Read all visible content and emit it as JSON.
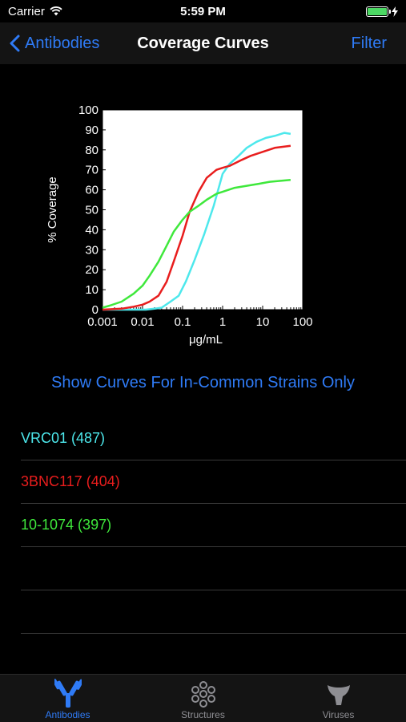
{
  "status": {
    "carrier": "Carrier",
    "time": "5:59 PM"
  },
  "nav": {
    "back_label": "Antibodies",
    "title": "Coverage Curves",
    "filter_label": "Filter"
  },
  "chart_data": {
    "type": "line",
    "xlabel": "μg/mL",
    "ylabel": "% Coverage",
    "xscale": "log",
    "xlim": [
      0.001,
      100
    ],
    "ylim": [
      0,
      100
    ],
    "x_ticks": [
      "0.001",
      "0.01",
      "0.1",
      "1",
      "10",
      "100"
    ],
    "y_ticks": [
      "0",
      "10",
      "20",
      "30",
      "40",
      "50",
      "60",
      "70",
      "80",
      "90",
      "100"
    ],
    "series": [
      {
        "name": "VRC01",
        "color": "#4de8ec",
        "x": [
          0.001,
          0.012,
          0.02,
          0.03,
          0.05,
          0.08,
          0.12,
          0.2,
          0.35,
          0.6,
          1,
          1.5,
          2.5,
          4,
          7,
          12,
          20,
          35,
          50
        ],
        "y": [
          0,
          0,
          0.5,
          1,
          4,
          7,
          14,
          25,
          38,
          52,
          68,
          73,
          77,
          81,
          84,
          86,
          87,
          88.5,
          88
        ]
      },
      {
        "name": "3BNC117",
        "color": "#e81d1d",
        "x": [
          0.001,
          0.003,
          0.006,
          0.01,
          0.015,
          0.025,
          0.04,
          0.06,
          0.1,
          0.15,
          0.25,
          0.4,
          0.7,
          1,
          1.5,
          3,
          5,
          10,
          20,
          50
        ],
        "y": [
          0,
          0.5,
          1.5,
          2.5,
          4,
          7,
          14,
          24,
          37,
          49,
          59,
          66,
          70,
          71,
          72,
          75,
          77,
          79,
          81,
          82
        ]
      },
      {
        "name": "10-1074",
        "color": "#3fe83c",
        "x": [
          0.001,
          0.0015,
          0.003,
          0.006,
          0.01,
          0.015,
          0.025,
          0.04,
          0.06,
          0.1,
          0.15,
          0.25,
          0.4,
          0.7,
          1,
          2,
          4,
          8,
          15,
          50
        ],
        "y": [
          1,
          2,
          4,
          8,
          12,
          17,
          24,
          32,
          39,
          45,
          49,
          52,
          55,
          58,
          59,
          61,
          62,
          63,
          64,
          65
        ]
      }
    ]
  },
  "common_button_label": "Show Curves For In-Common Strains Only",
  "list": [
    {
      "label": "VRC01 (487)",
      "color": "#4de8ec"
    },
    {
      "label": "3BNC117 (404)",
      "color": "#e81d1d"
    },
    {
      "label": "10-1074 (397)",
      "color": "#3fe83c"
    },
    {
      "label": "",
      "color": "#ffffff"
    },
    {
      "label": "",
      "color": "#ffffff"
    }
  ],
  "tabs": [
    {
      "label": "Antibodies",
      "icon": "antibody-icon",
      "active": true
    },
    {
      "label": "Structures",
      "icon": "structure-icon",
      "active": false
    },
    {
      "label": "Viruses",
      "icon": "virus-icon",
      "active": false
    }
  ]
}
